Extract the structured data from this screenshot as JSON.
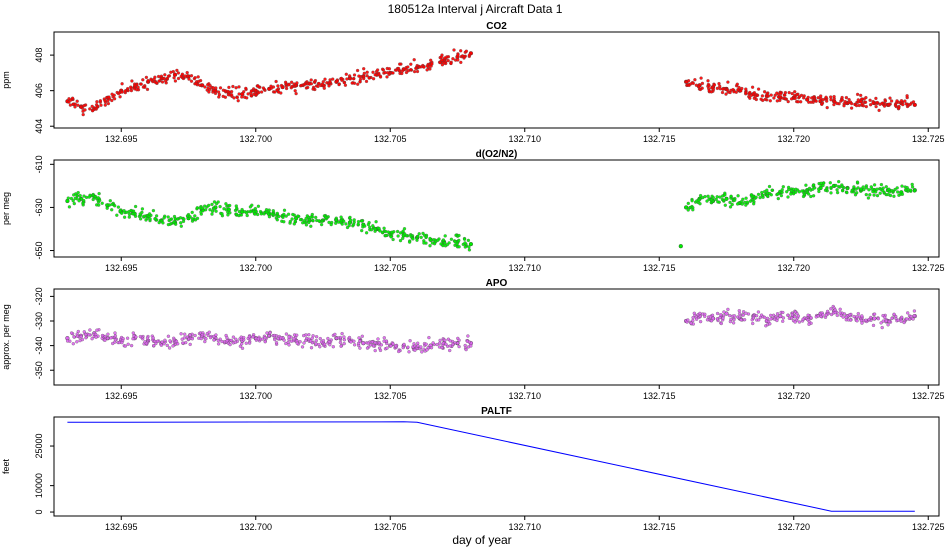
{
  "figure_title": "180512a   Interval j Aircraft Data 1",
  "chart_data": [
    {
      "type": "scatter",
      "title": "CO2",
      "ylabel": "ppm",
      "xlabel": "",
      "xlim": [
        132.6925,
        132.7254
      ],
      "ylim": [
        403.9,
        409.3
      ],
      "x_ticks": [
        "132.695",
        "132.700",
        "132.705",
        "132.710",
        "132.715",
        "132.720",
        "132.725"
      ],
      "y_ticks": [
        "404",
        "406",
        "408"
      ],
      "y_tick_values": [
        404,
        406,
        408
      ],
      "color": "#ff0000",
      "series": [
        {
          "name": "segment-1",
          "x": [
            132.693,
            132.6935,
            132.694,
            132.6945,
            132.695,
            132.6955,
            132.696,
            132.6965,
            132.697,
            132.6975,
            132.698,
            132.6985,
            132.699,
            132.6995,
            132.7,
            132.7005,
            132.701,
            132.7015,
            132.702,
            132.7025,
            132.703,
            132.7035,
            132.704,
            132.7045,
            132.705,
            132.7055,
            132.706,
            132.7065,
            132.707,
            132.7075,
            132.708
          ],
          "y": [
            405.4,
            405.1,
            405.0,
            405.6,
            406.0,
            406.2,
            406.5,
            406.7,
            406.9,
            406.8,
            406.3,
            406.0,
            405.9,
            405.8,
            406.0,
            406.1,
            406.2,
            406.3,
            406.4,
            406.3,
            406.5,
            406.7,
            406.8,
            406.9,
            407.0,
            407.2,
            407.3,
            407.5,
            407.7,
            407.9,
            408.1
          ]
        },
        {
          "name": "segment-2",
          "x": [
            132.716,
            132.7165,
            132.717,
            132.7175,
            132.718,
            132.7185,
            132.719,
            132.7195,
            132.72,
            132.7205,
            132.721,
            132.7215,
            132.722,
            132.7225,
            132.723,
            132.7235,
            132.724,
            132.7245
          ],
          "y": [
            406.5,
            406.3,
            406.2,
            406.1,
            406.0,
            405.8,
            405.7,
            405.6,
            405.6,
            405.5,
            405.4,
            405.4,
            405.3,
            405.4,
            405.3,
            405.2,
            405.3,
            405.2
          ]
        }
      ]
    },
    {
      "type": "scatter",
      "title": "d(O2/N2)",
      "ylabel": "per meg",
      "xlabel": "",
      "xlim": [
        132.6925,
        132.7254
      ],
      "ylim": [
        -653,
        -608
      ],
      "x_ticks": [
        "132.695",
        "132.700",
        "132.705",
        "132.710",
        "132.715",
        "132.720",
        "132.725"
      ],
      "y_ticks": [
        "-610",
        "-630",
        "-650"
      ],
      "y_tick_values": [
        -610,
        -630,
        -650
      ],
      "color": "#00ee00",
      "series": [
        {
          "name": "segment-1",
          "x": [
            132.693,
            132.6935,
            132.694,
            132.6945,
            132.695,
            132.6955,
            132.696,
            132.6965,
            132.697,
            132.6975,
            132.698,
            132.6985,
            132.699,
            132.6995,
            132.7,
            132.7005,
            132.701,
            132.7015,
            132.702,
            132.7025,
            132.703,
            132.7035,
            132.704,
            132.7045,
            132.705,
            132.7055,
            132.706,
            132.7065,
            132.707,
            132.7075,
            132.708
          ],
          "y": [
            -627,
            -626,
            -625,
            -629,
            -632,
            -633,
            -634,
            -636,
            -637,
            -635,
            -631,
            -630,
            -631,
            -632,
            -632,
            -633,
            -634,
            -635,
            -636,
            -636,
            -636,
            -637,
            -638,
            -640,
            -642,
            -643,
            -644,
            -645,
            -646,
            -646,
            -647
          ]
        },
        {
          "name": "segment-2",
          "x": [
            132.716,
            132.7165,
            132.717,
            132.7175,
            132.718,
            132.7185,
            132.719,
            132.7195,
            132.72,
            132.7205,
            132.721,
            132.7215,
            132.722,
            132.7225,
            132.723,
            132.7235,
            132.724,
            132.7245
          ],
          "y": [
            -630,
            -626,
            -627,
            -626,
            -628,
            -625,
            -624,
            -623,
            -623,
            -622,
            -621,
            -620,
            -621,
            -622,
            -622,
            -622,
            -623,
            -622
          ]
        },
        {
          "name": "outlier",
          "x": [
            132.7158
          ],
          "y": [
            -648
          ]
        }
      ]
    },
    {
      "type": "scatter",
      "title": "APO",
      "ylabel": "approx. per meg",
      "xlabel": "",
      "xlim": [
        132.6925,
        132.7254
      ],
      "ylim": [
        -356,
        -317
      ],
      "x_ticks": [
        "132.695",
        "132.700",
        "132.705",
        "132.710",
        "132.715",
        "132.720",
        "132.725"
      ],
      "y_ticks": [
        "-320",
        "-330",
        "-340",
        "-350"
      ],
      "y_tick_values": [
        -320,
        -330,
        -340,
        -350
      ],
      "color": "#dd66ee",
      "series": [
        {
          "name": "segment-1",
          "x": [
            132.693,
            132.6935,
            132.694,
            132.6945,
            132.695,
            132.6955,
            132.696,
            132.6965,
            132.697,
            132.6975,
            132.698,
            132.6985,
            132.699,
            132.6995,
            132.7,
            132.7005,
            132.701,
            132.7015,
            132.702,
            132.7025,
            132.703,
            132.7035,
            132.704,
            132.7045,
            132.705,
            132.7055,
            132.706,
            132.7065,
            132.707,
            132.7075,
            132.708
          ],
          "y": [
            -337,
            -336,
            -335,
            -337,
            -338,
            -337,
            -338,
            -339,
            -338,
            -337,
            -336,
            -337,
            -338,
            -338,
            -337,
            -336,
            -337,
            -338,
            -338,
            -339,
            -337,
            -338,
            -339,
            -339,
            -340,
            -340,
            -341,
            -340,
            -339,
            -339,
            -339
          ]
        },
        {
          "name": "segment-2",
          "x": [
            132.716,
            132.7165,
            132.717,
            132.7175,
            132.718,
            132.7185,
            132.719,
            132.7195,
            132.72,
            132.7205,
            132.721,
            132.7215,
            132.722,
            132.7225,
            132.723,
            132.7235,
            132.724,
            132.7245
          ],
          "y": [
            -330,
            -328,
            -329,
            -327,
            -329,
            -328,
            -330,
            -328,
            -328,
            -329,
            -327,
            -326,
            -328,
            -329,
            -329,
            -330,
            -329,
            -328
          ]
        }
      ]
    },
    {
      "type": "line",
      "title": "PALTF",
      "ylabel": "feet",
      "xlabel": "day of year",
      "xlim": [
        132.6925,
        132.7254
      ],
      "ylim": [
        -1500,
        36000
      ],
      "x_ticks": [
        "132.695",
        "132.700",
        "132.705",
        "132.710",
        "132.715",
        "132.720",
        "132.725"
      ],
      "y_ticks": [
        "0",
        "10000",
        "25000"
      ],
      "y_tick_values": [
        0,
        10000,
        25000
      ],
      "color": "#0000ff",
      "series": [
        {
          "name": "altitude",
          "x": [
            132.693,
            132.7055,
            132.706,
            132.7214,
            132.7245
          ],
          "y": [
            34000,
            34200,
            34000,
            300,
            300
          ]
        }
      ]
    }
  ]
}
